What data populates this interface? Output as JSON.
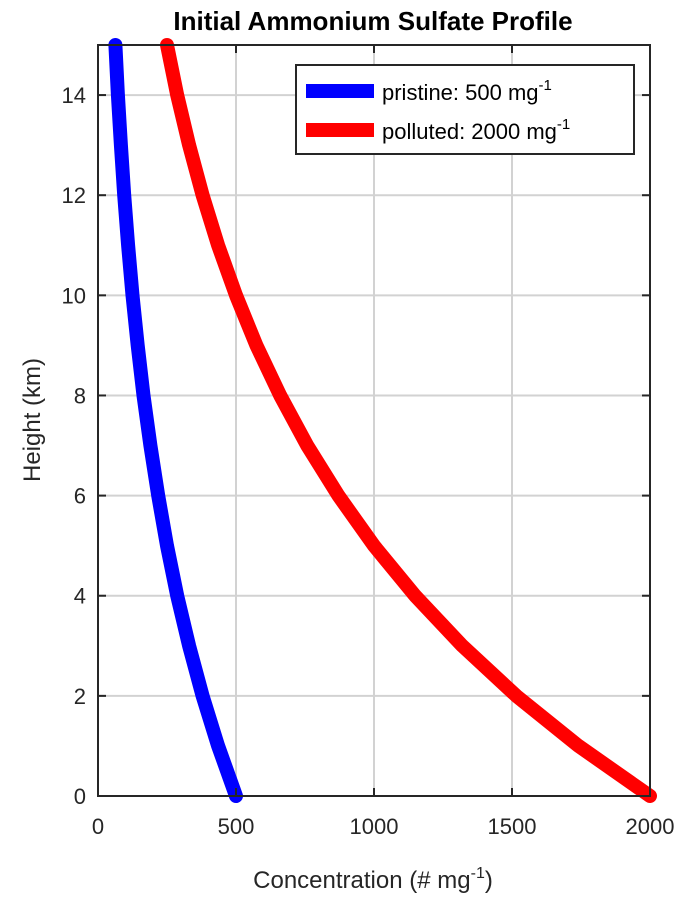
{
  "chart_data": {
    "type": "line",
    "title": "Initial Ammonium Sulfate Profile",
    "xlabel": "Concentration (# mg",
    "xlabel_sup": "-1",
    "xlabel_suffix": ")",
    "ylabel": "Height (km)",
    "xlim": [
      0,
      2000
    ],
    "ylim": [
      0,
      15
    ],
    "xticks": [
      0,
      500,
      1000,
      1500,
      2000
    ],
    "yticks": [
      0,
      2,
      4,
      6,
      8,
      10,
      12,
      14
    ],
    "grid": true,
    "legend_position": "top-right",
    "series": [
      {
        "name": "pristine: 500 mg",
        "name_sup": "-1",
        "color": "#0000ff",
        "x": [
          500,
          435,
          379,
          330,
          287,
          250,
          218,
          190,
          165,
          144,
          125,
          109,
          95,
          83,
          72,
          63
        ],
        "y": [
          0,
          1,
          2,
          3,
          4,
          5,
          6,
          7,
          8,
          9,
          10,
          11,
          12,
          13,
          14,
          15
        ]
      },
      {
        "name": "polluted: 2000 mg",
        "name_sup": "-1",
        "color": "#ff0000",
        "x": [
          2000,
          1741,
          1516,
          1320,
          1149,
          1000,
          871,
          758,
          660,
          574,
          500,
          435,
          379,
          330,
          287,
          250
        ],
        "y": [
          0,
          1,
          2,
          3,
          4,
          5,
          6,
          7,
          8,
          9,
          10,
          11,
          12,
          13,
          14,
          15
        ]
      }
    ]
  }
}
